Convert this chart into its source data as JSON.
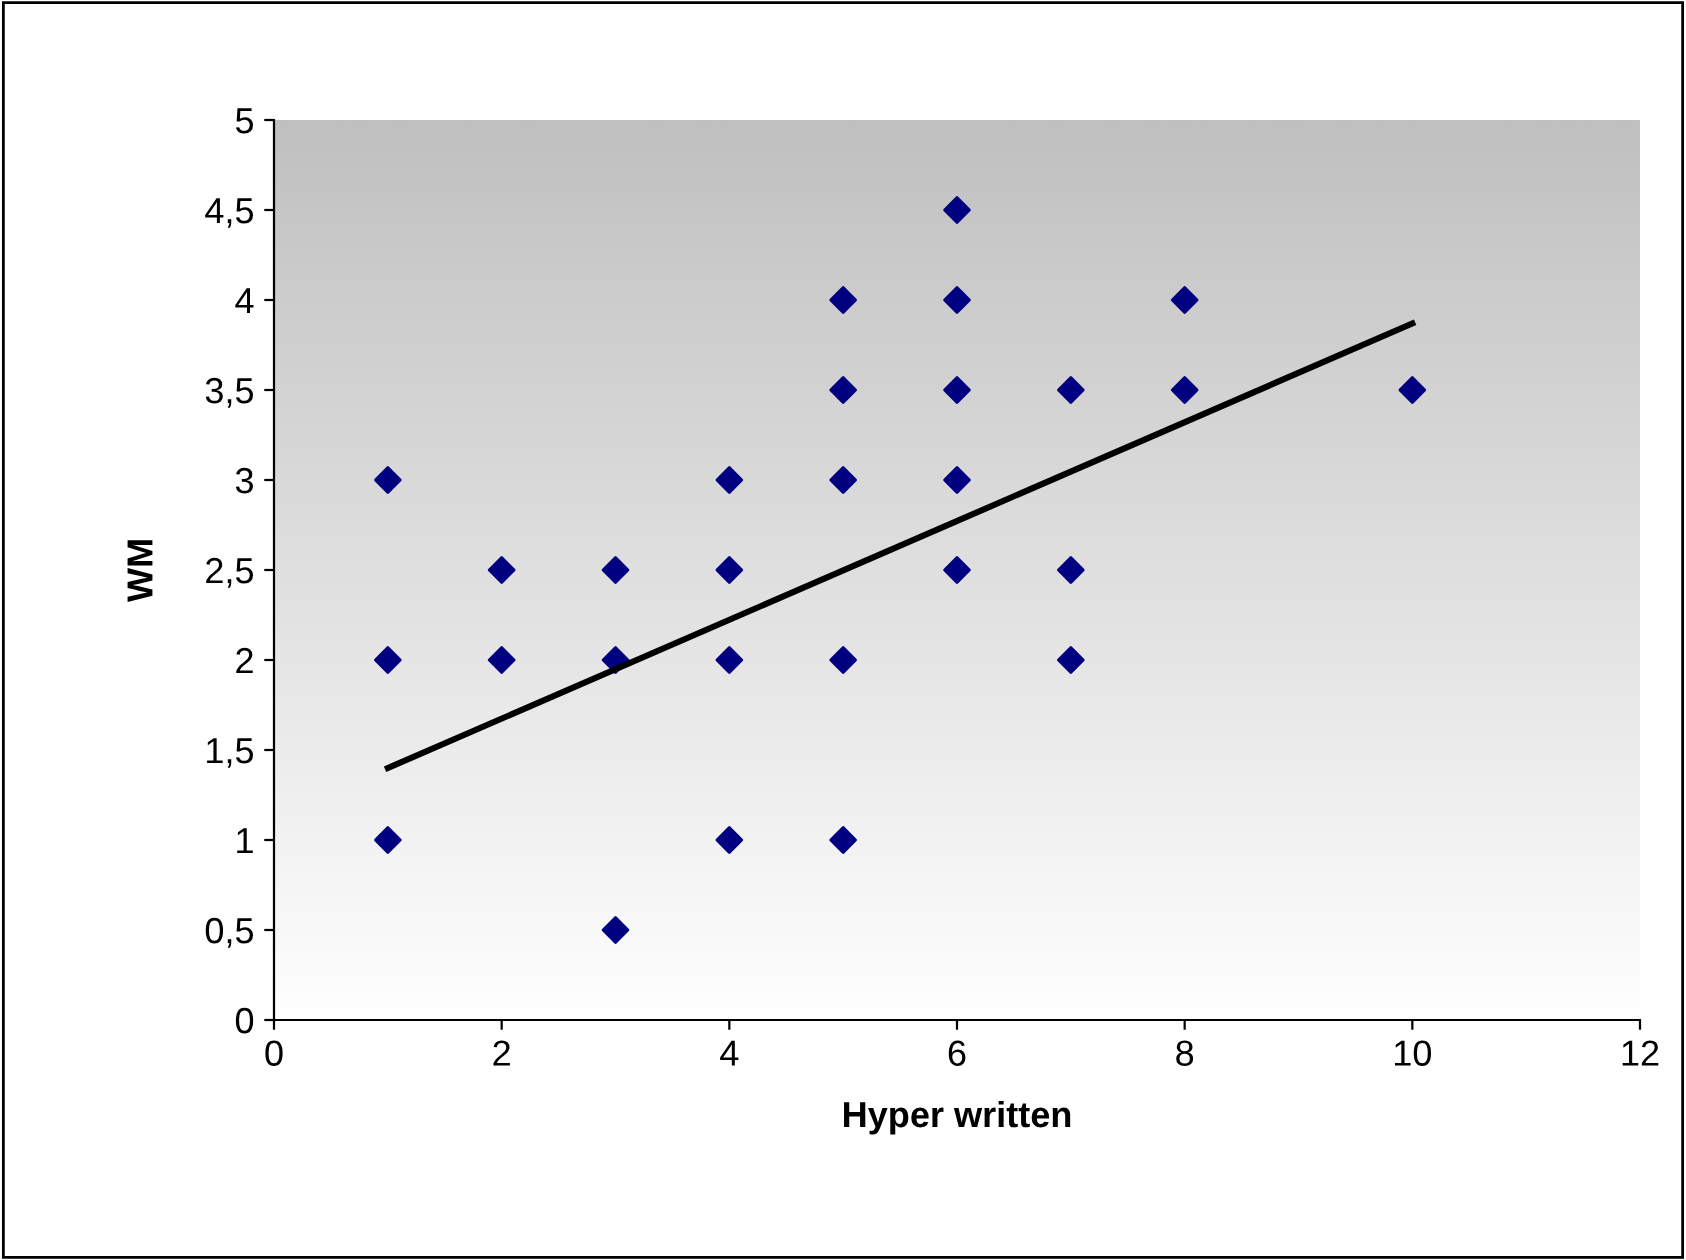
{
  "chart_data": {
    "type": "scatter",
    "xlabel": "Hyper written",
    "ylabel": "WM",
    "series": [
      {
        "color": "#000080",
        "marker": "diamond",
        "x": [
          1,
          1,
          1,
          2,
          2,
          3,
          3,
          3,
          4,
          4,
          4,
          4,
          5,
          5,
          5,
          5,
          5,
          6,
          6,
          6,
          6,
          6,
          7,
          7,
          7,
          8,
          8,
          10
        ],
        "values": [
          3,
          2,
          1,
          2.5,
          2,
          2.5,
          2,
          0.5,
          3,
          2.5,
          2,
          1,
          4,
          3.5,
          3,
          2,
          1,
          4.5,
          4,
          3.5,
          3,
          2.5,
          3.5,
          2.5,
          2,
          4,
          3.5,
          3.5
        ]
      },
      {
        "type": "line",
        "color": "#000000",
        "marker": "none",
        "line_style": "solid",
        "x": [
          1,
          10
        ],
        "values": [
          1.4,
          3.87
        ]
      }
    ],
    "xlim": [
      0,
      12
    ],
    "xticks": [
      0,
      2,
      4,
      6,
      8,
      10,
      12
    ],
    "ylim": [
      0,
      5
    ],
    "yticks": [
      0,
      {
        "value": 0.5,
        "label": "0,5"
      },
      1,
      {
        "value": 1.5,
        "label": "1,5"
      },
      2,
      {
        "value": 2.5,
        "label": "2,5"
      },
      3,
      {
        "value": 3.5,
        "label": "3,5"
      },
      4,
      {
        "value": 4.5,
        "label": "4,5"
      },
      5
    ],
    "grid": false
  }
}
